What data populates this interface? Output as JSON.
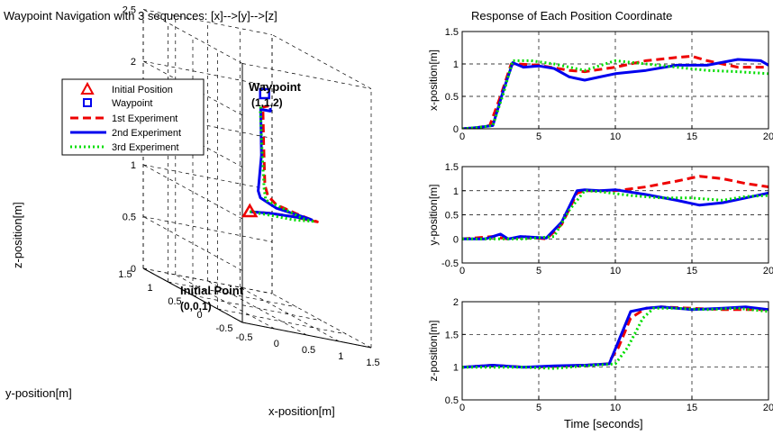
{
  "figure": {
    "left_title": "Waypoint Navigation with 3 sequences: [x]-->[y]-->[z]",
    "right_title": "Response of Each Position Coordinate"
  },
  "legend": {
    "entries": [
      {
        "label": "Initial Position",
        "marker": "triangle",
        "color": "#ee0000"
      },
      {
        "label": "Waypoint",
        "marker": "square",
        "color": "#0000ee"
      },
      {
        "label": "1st Experiment",
        "line": "dashed",
        "color": "#ee0000"
      },
      {
        "label": "2nd Experiment",
        "line": "solid",
        "color": "#0000ee"
      },
      {
        "label": "3rd Experiment",
        "line": "dotted",
        "color": "#00dd00"
      }
    ]
  },
  "annotations": {
    "waypoint_title": "Waypoint",
    "waypoint_coord": "(1,1,2)",
    "initial_title": "Initial Point",
    "initial_coord": "(0,0,1)"
  },
  "chart_data": [
    {
      "type": "line3d",
      "xlabel": "x-position[m]",
      "ylabel": "y-position[m]",
      "zlabel": "z-position[m]",
      "xlim": [
        -0.5,
        1.5
      ],
      "ylim": [
        -0.5,
        1.5
      ],
      "zlim": [
        0,
        2.5
      ],
      "x_ticks": [
        "-0.5",
        "0",
        "0.5",
        "1",
        "1.5"
      ],
      "y_ticks": [
        "-0.5",
        "0",
        "0.5",
        "1",
        "1.5"
      ],
      "z_ticks": [
        "0",
        "0.5",
        "1",
        "1.5",
        "2",
        "2.5"
      ],
      "grid": true,
      "initial_point": [
        0,
        0,
        1
      ],
      "waypoint": [
        1,
        1,
        2
      ],
      "series": [
        {
          "name": "1st Experiment",
          "color": "#ee0000",
          "style": "dashed",
          "points": [
            [
              0,
              0,
              1
            ],
            [
              0.35,
              0.02,
              1.02
            ],
            [
              0.7,
              0.03,
              1.03
            ],
            [
              1.0,
              0.05,
              1.02
            ],
            [
              1.05,
              0.0,
              1.03
            ],
            [
              1.0,
              0.3,
              1.01
            ],
            [
              0.95,
              0.7,
              1.0
            ],
            [
              1.05,
              1.0,
              1.02
            ],
            [
              1.08,
              1.1,
              1.1
            ],
            [
              1.1,
              1.15,
              1.5
            ],
            [
              1.05,
              1.1,
              1.85
            ],
            [
              1.1,
              1.05,
              1.88
            ]
          ]
        },
        {
          "name": "2nd Experiment",
          "color": "#0000ee",
          "style": "solid",
          "points": [
            [
              0,
              0,
              1
            ],
            [
              0.35,
              0.02,
              1.02
            ],
            [
              0.75,
              0.03,
              1.03
            ],
            [
              1.0,
              0.05,
              1.03
            ],
            [
              0.95,
              0.2,
              1.02
            ],
            [
              0.8,
              0.5,
              1.0
            ],
            [
              0.78,
              0.8,
              1.02
            ],
            [
              0.9,
              1.0,
              1.05
            ],
            [
              0.95,
              1.0,
              1.4
            ],
            [
              0.9,
              0.95,
              1.85
            ],
            [
              1.05,
              0.95,
              1.85
            ],
            [
              1.05,
              0.95,
              1.88
            ]
          ]
        },
        {
          "name": "3rd Experiment",
          "color": "#00dd00",
          "style": "dotted",
          "points": [
            [
              0,
              0,
              1
            ],
            [
              0.35,
              0.02,
              1.0
            ],
            [
              0.7,
              0.02,
              1.0
            ],
            [
              1.0,
              0.03,
              1.02
            ],
            [
              0.98,
              0.2,
              1.0
            ],
            [
              0.95,
              0.55,
              1.0
            ],
            [
              0.9,
              0.85,
              1.0
            ],
            [
              0.9,
              0.88,
              1.1
            ],
            [
              0.88,
              0.9,
              1.5
            ],
            [
              0.87,
              0.92,
              1.85
            ],
            [
              0.9,
              0.95,
              1.88
            ]
          ]
        }
      ]
    },
    {
      "type": "line",
      "title": "Response of Each Position Coordinate",
      "xlabel": "",
      "ylabel": "x-position[m]",
      "xlim": [
        0,
        20
      ],
      "ylim": [
        0,
        1.5
      ],
      "x_ticks": [
        "0",
        "5",
        "10",
        "15",
        "20"
      ],
      "y_ticks": [
        "0",
        "0.5",
        "1",
        "1.5"
      ],
      "grid": true,
      "series": [
        {
          "name": "1st Experiment",
          "color": "#ee0000",
          "style": "dashed",
          "points": [
            [
              0,
              0
            ],
            [
              1,
              0.02
            ],
            [
              1.8,
              0.05
            ],
            [
              2.5,
              0.5
            ],
            [
              3.2,
              1.0
            ],
            [
              3.6,
              1.0
            ],
            [
              5,
              0.98
            ],
            [
              7,
              0.9
            ],
            [
              8,
              0.88
            ],
            [
              10,
              0.95
            ],
            [
              12,
              1.05
            ],
            [
              14,
              1.1
            ],
            [
              15,
              1.12
            ],
            [
              16,
              1.05
            ],
            [
              18,
              0.95
            ],
            [
              20,
              0.95
            ]
          ]
        },
        {
          "name": "2nd Experiment",
          "color": "#0000ee",
          "style": "solid",
          "points": [
            [
              0,
              0
            ],
            [
              1,
              0.02
            ],
            [
              2,
              0.05
            ],
            [
              2.7,
              0.6
            ],
            [
              3.3,
              1.02
            ],
            [
              4,
              0.95
            ],
            [
              5,
              0.97
            ],
            [
              6,
              0.93
            ],
            [
              7,
              0.8
            ],
            [
              8,
              0.75
            ],
            [
              9,
              0.8
            ],
            [
              10,
              0.85
            ],
            [
              12,
              0.9
            ],
            [
              14,
              0.98
            ],
            [
              16,
              0.98
            ],
            [
              18,
              1.07
            ],
            [
              19.5,
              1.05
            ],
            [
              20,
              0.98
            ]
          ]
        },
        {
          "name": "3rd Experiment",
          "color": "#00dd00",
          "style": "dotted",
          "points": [
            [
              0,
              0
            ],
            [
              1,
              0.02
            ],
            [
              2,
              0.05
            ],
            [
              2.7,
              0.55
            ],
            [
              3.3,
              1.05
            ],
            [
              4.5,
              1.05
            ],
            [
              6,
              1.0
            ],
            [
              8,
              0.9
            ],
            [
              10,
              1.05
            ],
            [
              12,
              1.0
            ],
            [
              14,
              0.95
            ],
            [
              16,
              0.9
            ],
            [
              18,
              0.88
            ],
            [
              20,
              0.85
            ]
          ]
        }
      ]
    },
    {
      "type": "line",
      "xlabel": "",
      "ylabel": "y-position[m]",
      "xlim": [
        0,
        20
      ],
      "ylim": [
        -0.5,
        1.5
      ],
      "x_ticks": [
        "0",
        "5",
        "10",
        "15",
        "20"
      ],
      "y_ticks": [
        "-0.5",
        "0",
        "0.5",
        "1",
        "1.5"
      ],
      "grid": true,
      "series": [
        {
          "name": "1st Experiment",
          "color": "#ee0000",
          "style": "dashed",
          "points": [
            [
              0,
              0
            ],
            [
              2,
              0.05
            ],
            [
              3,
              0.0
            ],
            [
              4,
              0.05
            ],
            [
              5.5,
              0.0
            ],
            [
              6.5,
              0.3
            ],
            [
              7.5,
              0.95
            ],
            [
              8,
              1.0
            ],
            [
              9,
              1.0
            ],
            [
              10,
              1.0
            ],
            [
              12,
              1.08
            ],
            [
              14,
              1.2
            ],
            [
              15.5,
              1.3
            ],
            [
              17,
              1.25
            ],
            [
              18.5,
              1.15
            ],
            [
              20,
              1.08
            ]
          ]
        },
        {
          "name": "2nd Experiment",
          "color": "#0000ee",
          "style": "solid",
          "points": [
            [
              0,
              0
            ],
            [
              1.5,
              0.0
            ],
            [
              2.5,
              0.1
            ],
            [
              3,
              0.0
            ],
            [
              3.8,
              0.05
            ],
            [
              5.5,
              0.02
            ],
            [
              6.5,
              0.35
            ],
            [
              7.5,
              1.0
            ],
            [
              8,
              1.02
            ],
            [
              9,
              1.0
            ],
            [
              10,
              1.02
            ],
            [
              12,
              0.92
            ],
            [
              14,
              0.8
            ],
            [
              15.5,
              0.7
            ],
            [
              17,
              0.75
            ],
            [
              18.5,
              0.85
            ],
            [
              20,
              0.95
            ]
          ]
        },
        {
          "name": "3rd Experiment",
          "color": "#00dd00",
          "style": "dotted",
          "points": [
            [
              0,
              0
            ],
            [
              2,
              0.0
            ],
            [
              4,
              0.0
            ],
            [
              6,
              0.05
            ],
            [
              7,
              0.6
            ],
            [
              8,
              1.0
            ],
            [
              9,
              0.98
            ],
            [
              11,
              0.9
            ],
            [
              13,
              0.85
            ],
            [
              15,
              0.85
            ],
            [
              17,
              0.8
            ],
            [
              18.5,
              0.88
            ],
            [
              20,
              0.9
            ]
          ]
        }
      ]
    },
    {
      "type": "line",
      "xlabel": "Time [seconds]",
      "ylabel": "z-position[m]",
      "xlim": [
        0,
        20
      ],
      "ylim": [
        0.5,
        2
      ],
      "x_ticks": [
        "0",
        "5",
        "10",
        "15",
        "20"
      ],
      "y_ticks": [
        "0.5",
        "1",
        "1.5",
        "2"
      ],
      "grid": true,
      "series": [
        {
          "name": "1st Experiment",
          "color": "#ee0000",
          "style": "dashed",
          "points": [
            [
              0,
              1.0
            ],
            [
              2,
              1.03
            ],
            [
              4,
              1.0
            ],
            [
              6,
              1.01
            ],
            [
              8,
              1.03
            ],
            [
              9.5,
              1.05
            ],
            [
              10.2,
              1.3
            ],
            [
              11,
              1.75
            ],
            [
              12,
              1.9
            ],
            [
              13,
              1.92
            ],
            [
              15,
              1.9
            ],
            [
              17,
              1.88
            ],
            [
              20,
              1.88
            ]
          ]
        },
        {
          "name": "2nd Experiment",
          "color": "#0000ee",
          "style": "solid",
          "points": [
            [
              0,
              1.0
            ],
            [
              2,
              1.03
            ],
            [
              4,
              1.0
            ],
            [
              6,
              1.02
            ],
            [
              8,
              1.03
            ],
            [
              9.6,
              1.05
            ],
            [
              10.3,
              1.45
            ],
            [
              11,
              1.85
            ],
            [
              12,
              1.9
            ],
            [
              13,
              1.92
            ],
            [
              15,
              1.88
            ],
            [
              17,
              1.9
            ],
            [
              18.5,
              1.92
            ],
            [
              20,
              1.88
            ]
          ]
        },
        {
          "name": "3rd Experiment",
          "color": "#00dd00",
          "style": "dotted",
          "points": [
            [
              0,
              1.0
            ],
            [
              2,
              1.0
            ],
            [
              4,
              1.0
            ],
            [
              6,
              0.98
            ],
            [
              8,
              1.02
            ],
            [
              10,
              1.05
            ],
            [
              10.8,
              1.3
            ],
            [
              11.8,
              1.75
            ],
            [
              12.5,
              1.9
            ],
            [
              14,
              1.9
            ],
            [
              16,
              1.88
            ],
            [
              18,
              1.9
            ],
            [
              20,
              1.85
            ]
          ]
        }
      ]
    }
  ]
}
